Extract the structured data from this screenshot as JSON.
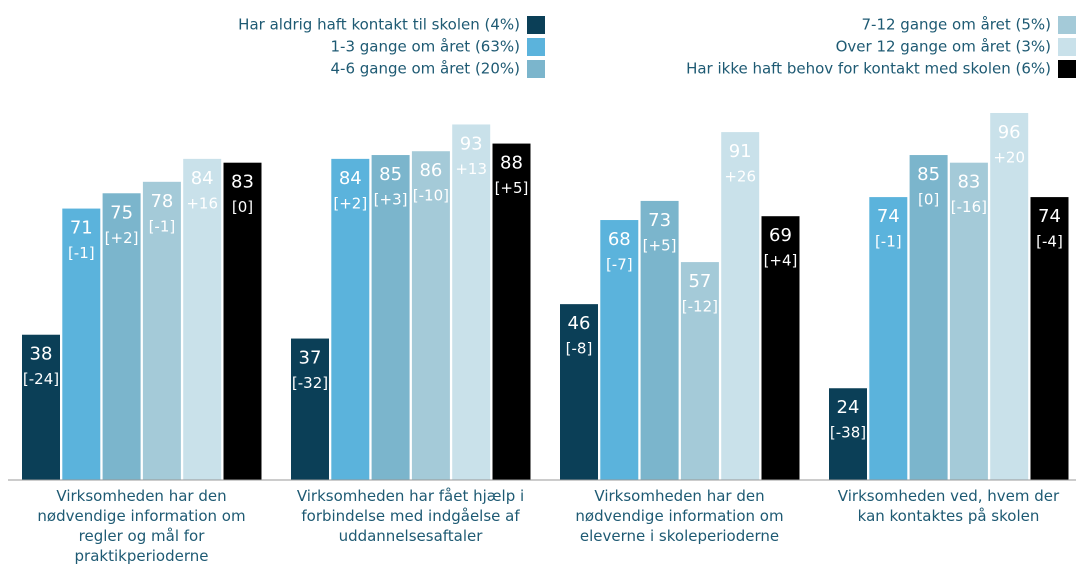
{
  "chart_data": {
    "type": "bar",
    "categories": [
      "Virksomheden har den nødvendige information om regler og mål for praktikperioderne",
      "Virksomheden har fået hjælp i forbindelse med indgåelse af uddannelsesaftaler",
      "Virksomheden har den nødvendige information om eleverne i skoleperioderne",
      "Virksomheden ved, hvem der kan kontaktes på skolen"
    ],
    "ylim": [
      0,
      100
    ],
    "series": [
      {
        "name": "Har aldrig haft kontakt til skolen (4%)",
        "color": "#0b3f57",
        "values": [
          38,
          37,
          46,
          24
        ],
        "changes": [
          -24,
          -32,
          -8,
          -38
        ],
        "change_labels": [
          "[-24]",
          "[-32]",
          "[-8]",
          "[-38]"
        ]
      },
      {
        "name": "1-3 gange om året (63%)",
        "color": "#5bb3dc",
        "values": [
          71,
          84,
          68,
          74
        ],
        "changes": [
          -1,
          2,
          -7,
          -1
        ],
        "change_labels": [
          "[-1]",
          "[+2]",
          "[-7]",
          "[-1]"
        ]
      },
      {
        "name": "4-6 gange om året (20%)",
        "color": "#7bb5cc",
        "values": [
          75,
          85,
          73,
          85
        ],
        "changes": [
          2,
          3,
          5,
          0
        ],
        "change_labels": [
          "[+2]",
          "[+3]",
          "[+5]",
          "[0]"
        ]
      },
      {
        "name": "7-12 gange om året (5%)",
        "color": "#a4cad8",
        "values": [
          78,
          86,
          57,
          83
        ],
        "changes": [
          -1,
          -10,
          -12,
          -16
        ],
        "change_labels": [
          "[-1]",
          "[-10]",
          "[-12]",
          "[-16]"
        ]
      },
      {
        "name": "Over 12 gange om året (3%)",
        "color": "#c9e1ea",
        "values": [
          84,
          93,
          91,
          96
        ],
        "changes": [
          16,
          13,
          26,
          20
        ],
        "change_labels": [
          "+16",
          "+13",
          "+26",
          "+20"
        ]
      },
      {
        "name": "Har ikke haft behov for kontakt med skolen (6%)",
        "color": "#000000",
        "values": [
          83,
          88,
          69,
          74
        ],
        "changes": [
          0,
          5,
          4,
          -4
        ],
        "change_labels": [
          "[0]",
          "[+5]",
          "[+4]",
          "[-4]"
        ]
      }
    ]
  }
}
